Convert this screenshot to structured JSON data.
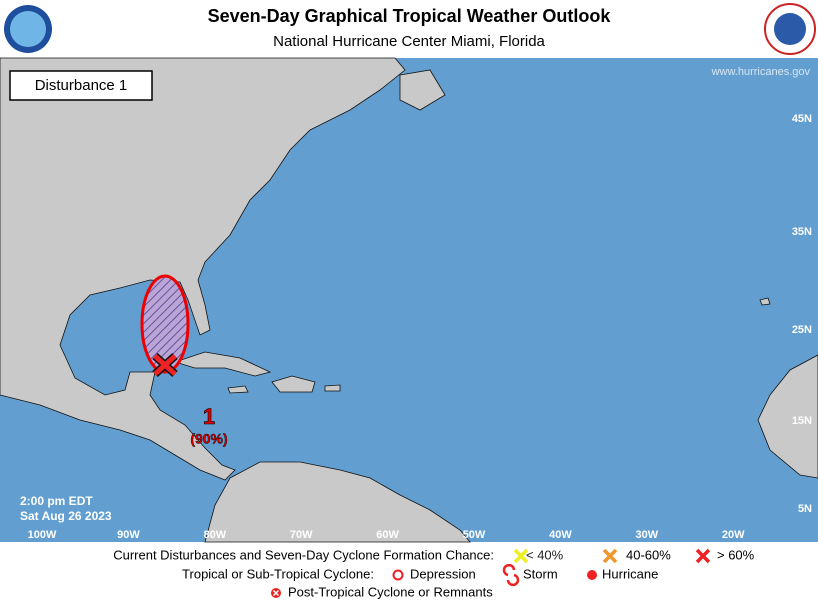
{
  "header": {
    "title": "Seven-Day Graphical Tropical Weather Outlook",
    "subtitle": "National Hurricane Center  Miami, Florida"
  },
  "map": {
    "disturbance_box": "Disturbance 1",
    "website": "www.hurricanes.gov",
    "lat_labels": [
      "45N",
      "35N",
      "25N",
      "15N",
      "5N"
    ],
    "lon_labels": [
      "100W",
      "90W",
      "80W",
      "70W",
      "60W",
      "50W",
      "40W",
      "30W",
      "20W"
    ],
    "timestamp": [
      "2:00 pm EDT",
      "Sat Aug 26 2023"
    ],
    "disturbance": {
      "label": "1",
      "chance": "(90%)"
    }
  },
  "legend": {
    "row1": {
      "label": "Current Disturbances and Seven-Day Cyclone Formation Chance:",
      "items": [
        "< 40%",
        "40-60%",
        "> 60%"
      ]
    },
    "row2": {
      "label": "Tropical or Sub-Tropical Cyclone:",
      "items": [
        "Depression",
        "Storm",
        "Hurricane"
      ]
    },
    "row3": "Post-Tropical Cyclone or Remnants"
  }
}
